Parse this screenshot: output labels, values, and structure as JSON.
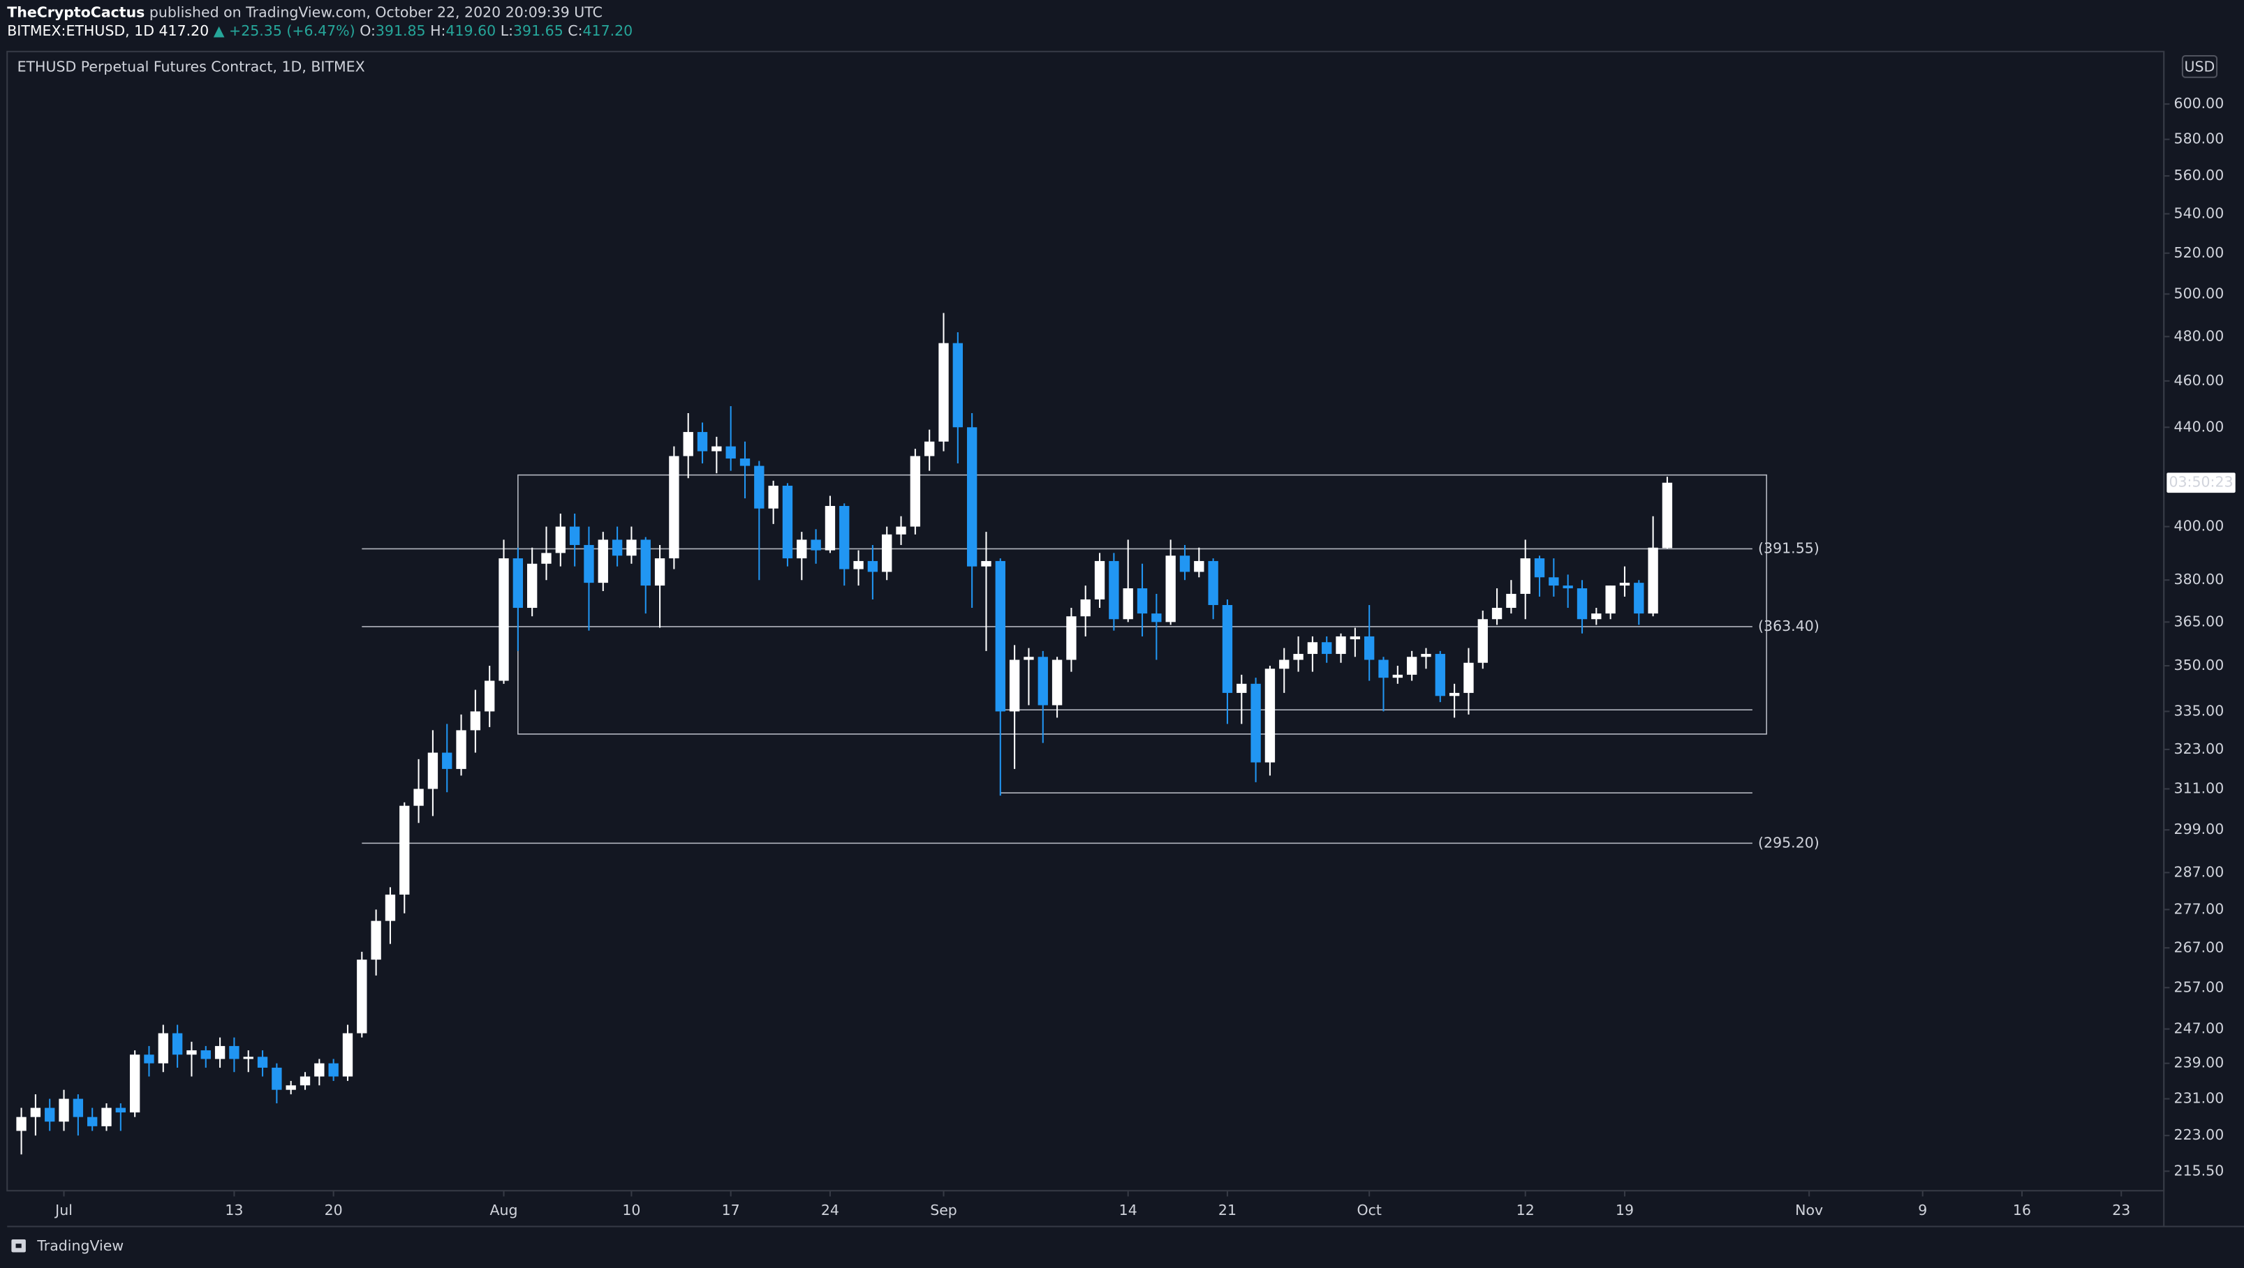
{
  "header": {
    "author": "TheCryptoCactus",
    "published": "published on TradingView.com, October 22, 2020 20:09:39 UTC"
  },
  "quote": {
    "symbol": "BITMEX:ETHUSD, 1D",
    "last": "417.20",
    "change": "▲ +25.35 (+6.47%)",
    "open_label": "O:",
    "open": "391.85",
    "high_label": "H:",
    "high": "419.60",
    "low_label": "L:",
    "low": "391.65",
    "close_label": "C:",
    "close": "417.20"
  },
  "footer": {
    "brand": "TradingView"
  },
  "chart_data": {
    "type": "candlestick",
    "title": "ETHUSD Perpetual Futures Contract, 1D, BITMEX",
    "currency": "USD",
    "up_color": "#ffffff",
    "down_color": "#2196f3",
    "log_scale": true,
    "categories": [
      "Jun 28",
      "Jun 29",
      "Jun 30",
      "Jul 1",
      "Jul 2",
      "Jul 3",
      "Jul 4",
      "Jul 5",
      "Jul 6",
      "Jul 7",
      "Jul 8",
      "Jul 9",
      "Jul 10",
      "Jul 11",
      "Jul 12",
      "Jul 13",
      "Jul 14",
      "Jul 15",
      "Jul 16",
      "Jul 17",
      "Jul 18",
      "Jul 19",
      "Jul 20",
      "Jul 21",
      "Jul 22",
      "Jul 23",
      "Jul 24",
      "Jul 25",
      "Jul 26",
      "Jul 27",
      "Jul 28",
      "Jul 29",
      "Jul 30",
      "Jul 31",
      "Aug 1",
      "Aug 2",
      "Aug 3",
      "Aug 4",
      "Aug 5",
      "Aug 6",
      "Aug 7",
      "Aug 8",
      "Aug 9",
      "Aug 10",
      "Aug 11",
      "Aug 12",
      "Aug 13",
      "Aug 14",
      "Aug 15",
      "Aug 16",
      "Aug 17",
      "Aug 18",
      "Aug 19",
      "Aug 20",
      "Aug 21",
      "Aug 22",
      "Aug 23",
      "Aug 24",
      "Aug 25",
      "Aug 26",
      "Aug 27",
      "Aug 28",
      "Aug 29",
      "Aug 30",
      "Aug 31",
      "Sep 1",
      "Sep 2",
      "Sep 3",
      "Sep 4",
      "Sep 5",
      "Sep 6",
      "Sep 7",
      "Sep 8",
      "Sep 9",
      "Sep 10",
      "Sep 11",
      "Sep 12",
      "Sep 13",
      "Sep 14",
      "Sep 15",
      "Sep 16",
      "Sep 17",
      "Sep 18",
      "Sep 19",
      "Sep 20",
      "Sep 21",
      "Sep 22",
      "Sep 23",
      "Sep 24",
      "Sep 25",
      "Sep 26",
      "Sep 27",
      "Sep 28",
      "Sep 29",
      "Sep 30",
      "Oct 1",
      "Oct 2",
      "Oct 3",
      "Oct 4",
      "Oct 5",
      "Oct 6",
      "Oct 7",
      "Oct 8",
      "Oct 9",
      "Oct 10",
      "Oct 11",
      "Oct 12",
      "Oct 13",
      "Oct 14",
      "Oct 15",
      "Oct 16",
      "Oct 17",
      "Oct 18",
      "Oct 19",
      "Oct 20",
      "Oct 21",
      "Oct 22"
    ],
    "open": [
      224,
      227,
      229,
      226,
      231,
      227,
      225,
      229,
      228,
      241,
      239,
      246,
      241,
      242,
      240,
      243,
      240,
      240.5,
      238,
      233,
      234,
      236,
      239,
      236,
      246,
      264,
      274,
      281,
      306,
      311,
      322,
      317,
      329,
      335,
      345,
      388,
      370,
      386,
      390,
      400,
      393,
      379,
      395,
      389,
      395,
      378,
      388,
      428,
      438,
      430,
      432,
      427,
      424,
      407,
      416,
      388,
      395,
      391,
      408,
      384,
      387,
      383,
      397,
      400,
      428,
      434,
      477,
      440,
      385,
      387,
      335,
      352,
      353,
      337,
      352,
      367,
      373,
      387,
      366,
      377,
      368,
      365,
      389,
      383,
      387,
      371,
      341,
      344,
      319,
      349,
      352,
      354,
      358,
      354,
      359,
      360,
      352,
      346,
      347,
      353,
      354,
      340,
      341,
      351,
      366,
      370,
      375,
      388,
      381,
      378,
      377,
      366,
      368,
      378,
      379,
      368,
      391.85
    ],
    "high": [
      229,
      232,
      231,
      233,
      232,
      229,
      230,
      230,
      242,
      243,
      248,
      248,
      244,
      243,
      245,
      245,
      242,
      242,
      239,
      235,
      237,
      240,
      240,
      248,
      266,
      277,
      283,
      307,
      320,
      329,
      331,
      334,
      342,
      350,
      395,
      392,
      392,
      400,
      405,
      405,
      400,
      398,
      400,
      400,
      396,
      393,
      432,
      446,
      442,
      436,
      449,
      434,
      426,
      418,
      417,
      398,
      399,
      412,
      409,
      391,
      393,
      400,
      404,
      431,
      439,
      491,
      482,
      446,
      398,
      388,
      357,
      356,
      355,
      353,
      370,
      378,
      390,
      390,
      395,
      386,
      375,
      395,
      393,
      392,
      388,
      373,
      347,
      346,
      350,
      356,
      360,
      360,
      360,
      361,
      363,
      371,
      353,
      350,
      355,
      356,
      355,
      344,
      356,
      369,
      377,
      380,
      395,
      389,
      388,
      382,
      380,
      370,
      378,
      385,
      380,
      404,
      419.6
    ],
    "low": [
      219,
      223,
      224,
      224,
      223,
      224,
      224,
      224,
      227,
      236,
      237,
      238,
      236,
      238,
      238,
      237,
      237,
      236,
      230,
      232,
      233,
      234,
      235,
      235,
      245,
      260,
      268,
      276,
      301,
      303,
      310,
      315,
      322,
      330,
      344,
      355,
      367,
      380,
      385,
      385,
      362,
      376,
      385,
      386,
      368,
      363,
      384,
      419,
      425,
      421,
      422,
      411,
      380,
      401,
      385,
      380,
      386,
      390,
      378,
      378,
      373,
      380,
      393,
      397,
      422,
      430,
      425,
      370,
      355,
      309,
      317,
      337,
      325,
      333,
      348,
      360,
      370,
      362,
      365,
      360,
      352,
      364,
      380,
      381,
      366,
      331,
      331,
      313,
      315,
      341,
      348,
      348,
      351,
      351,
      353,
      345,
      335,
      344,
      345,
      349,
      338,
      333,
      334,
      349,
      364,
      368,
      366,
      374,
      374,
      370,
      361,
      364,
      366,
      374,
      364,
      367,
      391.65
    ],
    "close": [
      227,
      229,
      226,
      231,
      227,
      225,
      229,
      228,
      241,
      239,
      246,
      241,
      242,
      240,
      243,
      240,
      240.5,
      238,
      233,
      234,
      236,
      239,
      236,
      246,
      264,
      274,
      281,
      306,
      311,
      322,
      317,
      329,
      335,
      345,
      388,
      370,
      386,
      390,
      400,
      393,
      379,
      395,
      389,
      395,
      378,
      388,
      428,
      438,
      430,
      432,
      427,
      424,
      407,
      416,
      388,
      395,
      391,
      408,
      384,
      387,
      383,
      397,
      400,
      428,
      434,
      477,
      440,
      385,
      387,
      335,
      352,
      353,
      337,
      352,
      367,
      373,
      387,
      366,
      377,
      368,
      365,
      389,
      383,
      387,
      371,
      341,
      344,
      319,
      349,
      352,
      354,
      358,
      354,
      360,
      360,
      352,
      346,
      347,
      353,
      354,
      340,
      341,
      351,
      366,
      370,
      375,
      388,
      381,
      378,
      377,
      366,
      368,
      378,
      379,
      368,
      392,
      417.2
    ],
    "xlim": [
      "Jun 27",
      "Nov 26"
    ],
    "xticks": [
      {
        "value": "Jul 1",
        "label": "Jul"
      },
      {
        "value": "Jul 13",
        "label": "13"
      },
      {
        "value": "Jul 20",
        "label": "20"
      },
      {
        "value": "Aug 1",
        "label": "Aug"
      },
      {
        "value": "Aug 10",
        "label": "10"
      },
      {
        "value": "Aug 17",
        "label": "17"
      },
      {
        "value": "Aug 24",
        "label": "24"
      },
      {
        "value": "Sep 1",
        "label": "Sep"
      },
      {
        "value": "Sep 14",
        "label": "14"
      },
      {
        "value": "Sep 21",
        "label": "21"
      },
      {
        "value": "Oct 1",
        "label": "Oct"
      },
      {
        "value": "Oct 12",
        "label": "12"
      },
      {
        "value": "Oct 19",
        "label": "19"
      },
      {
        "value": "Nov 1",
        "label": "Nov"
      },
      {
        "value": "Nov 9",
        "label": "9"
      },
      {
        "value": "Nov 16",
        "label": "16"
      },
      {
        "value": "Nov 23",
        "label": "23"
      }
    ],
    "ylim": [
      211.5,
      631
    ],
    "yticks": [
      {
        "value": 600,
        "label": "600.00"
      },
      {
        "value": 580,
        "label": "580.00"
      },
      {
        "value": 560,
        "label": "560.00"
      },
      {
        "value": 540,
        "label": "540.00"
      },
      {
        "value": 520,
        "label": "520.00"
      },
      {
        "value": 500,
        "label": "500.00"
      },
      {
        "value": 480,
        "label": "480.00"
      },
      {
        "value": 460,
        "label": "460.00"
      },
      {
        "value": 440,
        "label": "440.00"
      },
      {
        "value": 400,
        "label": "400.00"
      },
      {
        "value": 380,
        "label": "380.00"
      },
      {
        "value": 365,
        "label": "365.00"
      },
      {
        "value": 350,
        "label": "350.00"
      },
      {
        "value": 335,
        "label": "335.00"
      },
      {
        "value": 323,
        "label": "323.00"
      },
      {
        "value": 311,
        "label": "311.00"
      },
      {
        "value": 299,
        "label": "299.00"
      },
      {
        "value": 287,
        "label": "287.00"
      },
      {
        "value": 277,
        "label": "277.00"
      },
      {
        "value": 267,
        "label": "267.00"
      },
      {
        "value": 257,
        "label": "257.00"
      },
      {
        "value": 247,
        "label": "247.00"
      },
      {
        "value": 239,
        "label": "239.00"
      },
      {
        "value": 231,
        "label": "231.00"
      },
      {
        "value": 223,
        "label": "223.00"
      },
      {
        "value": 215.5,
        "label": "215.50"
      }
    ],
    "levels": [
      {
        "value": 391.55,
        "label": "(391.55)",
        "from": "Jul 22",
        "to": "Oct 28"
      },
      {
        "value": 363.4,
        "label": "(363.40)",
        "from": "Jul 22",
        "to": "Oct 28"
      },
      {
        "value": 295.2,
        "label": "(295.20)",
        "from": "Jul 22",
        "to": "Oct 28"
      },
      {
        "value": 335.5,
        "from": "Sep 5",
        "to": "Oct 28"
      },
      {
        "value": 309.8,
        "from": "Sep 5",
        "to": "Oct 28"
      }
    ],
    "box": {
      "top": 420.3,
      "bottom": 327.8,
      "from": "Aug 2",
      "to": "Oct 29"
    },
    "price_tag": {
      "countdown": "03:50:23"
    }
  }
}
